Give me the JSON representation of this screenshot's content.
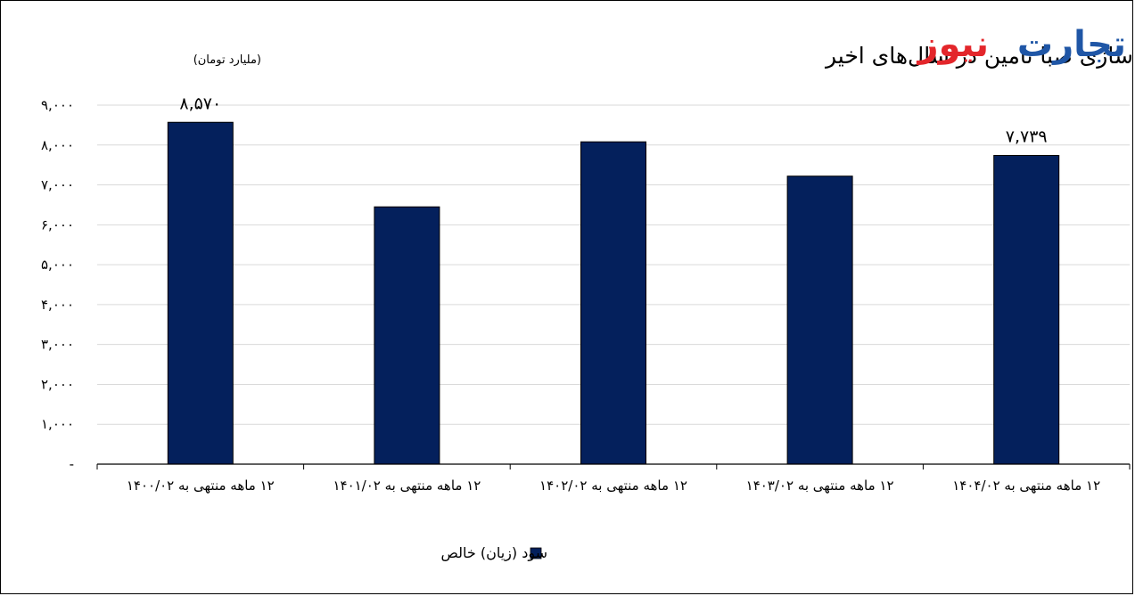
{
  "brand": {
    "logo_part1": "تجارت",
    "logo_part2": "نیوز",
    "color_blue": "#1f56a6",
    "color_red": "#e3262b"
  },
  "chart_data": {
    "type": "bar",
    "title": "وضعیت سودسازی صبا تامین در سال‌های اخیر",
    "subtitle": "(ملیارد تومان)",
    "categories": [
      "۱۲ ماهه منتهی به ۱۴۰۰/۰۲",
      "۱۲ ماهه منتهی به ۱۴۰۱/۰۲",
      "۱۲ ماهه منتهی به ۱۴۰۲/۰۲",
      "۱۲ ماهه منتهی به ۱۴۰۳/۰۲",
      "۱۲ ماهه منتهی به ۱۴۰۴/۰۲"
    ],
    "series": [
      {
        "name": "سود (زیان) خالص",
        "values": [
          8570,
          6450,
          8080,
          7220,
          7739
        ],
        "color": "#04205c"
      }
    ],
    "data_labels": [
      "۸,۵۷۰",
      "",
      "",
      "",
      "۷,۷۳۹"
    ],
    "ylim": [
      0,
      9000
    ],
    "y_ticks": [
      0,
      1000,
      2000,
      3000,
      4000,
      5000,
      6000,
      7000,
      8000,
      9000
    ],
    "y_tick_labels": [
      "-",
      "۱,۰۰۰",
      "۲,۰۰۰",
      "۳,۰۰۰",
      "۴,۰۰۰",
      "۵,۰۰۰",
      "۶,۰۰۰",
      "۷,۰۰۰",
      "۸,۰۰۰",
      "۹,۰۰۰"
    ],
    "grid": true,
    "legend_position": "bottom"
  }
}
